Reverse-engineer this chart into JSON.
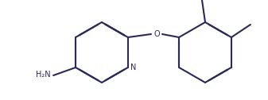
{
  "line_color": "#2a2a5a",
  "line_width": 1.5,
  "bg_color": "#ffffff",
  "label_h2n": "H₂N",
  "label_n": "N",
  "label_o": "O",
  "figsize": [
    3.37,
    1.26
  ],
  "dpi": 100
}
